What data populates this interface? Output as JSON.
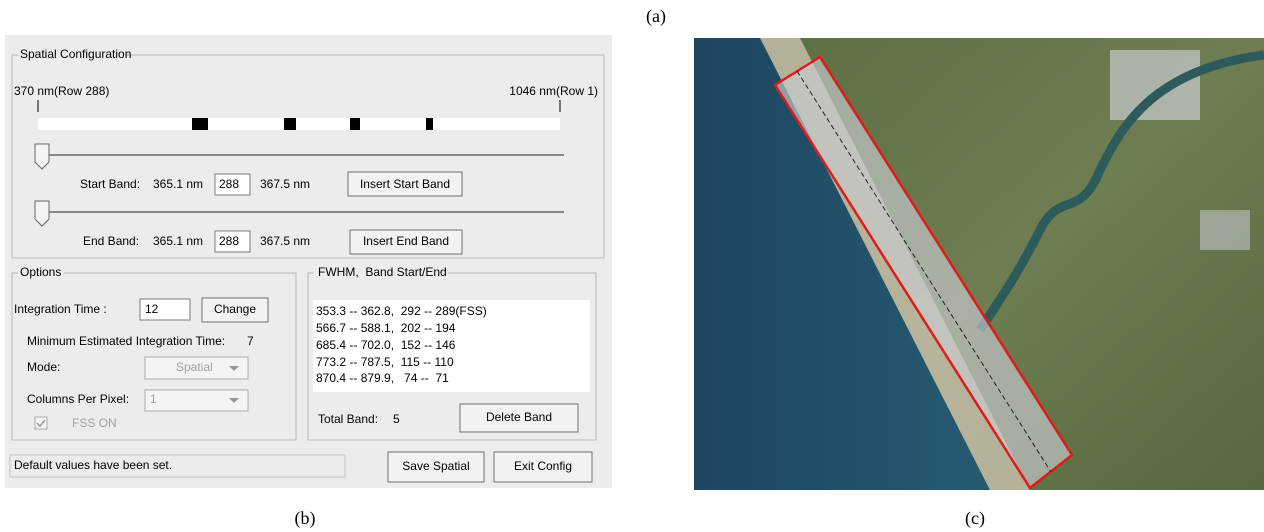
{
  "captions": {
    "a": "(a)",
    "b": "(b)",
    "c": "(c)"
  },
  "spatial_configuration": {
    "title": "Spatial Configuration",
    "left_label": "370 nm(Row 288)",
    "right_label": "1046 nm(Row 1)",
    "start_band": {
      "label": "Start Band:",
      "low": "365.1 nm",
      "row": "288",
      "high": "367.5 nm",
      "button": "Insert Start Band"
    },
    "end_band": {
      "label": "End Band:",
      "low": "365.1 nm",
      "row": "288",
      "high": "367.5 nm",
      "button": "Insert End Band"
    }
  },
  "options": {
    "title": "Options",
    "integration_label": "Integration Time :",
    "integration_value": "12",
    "change_button": "Change",
    "min_label": "Minimum Estimated Integration Time:",
    "min_value": "7",
    "mode_label": "Mode:",
    "mode_value": "Spatial",
    "columns_label": "Columns Per Pixel:",
    "columns_value": "1",
    "fss_label": "FSS ON"
  },
  "fwhm": {
    "title": "FWHM,  Band Start/End",
    "lines": [
      "353.3 -- 362.8,  292 -- 289(FSS)",
      "566.7 -- 588.1,  202 -- 194",
      "685.4 -- 702.0,  152 -- 146",
      "773.2 -- 787.5,  115 -- 110",
      "870.4 -- 879.9,   74 --  71"
    ],
    "total_label": "Total Band:",
    "total_value": "5",
    "delete_button": "Delete Band"
  },
  "status": "Default values have been set.",
  "save_button": "Save Spatial",
  "exit_button": "Exit Config"
}
